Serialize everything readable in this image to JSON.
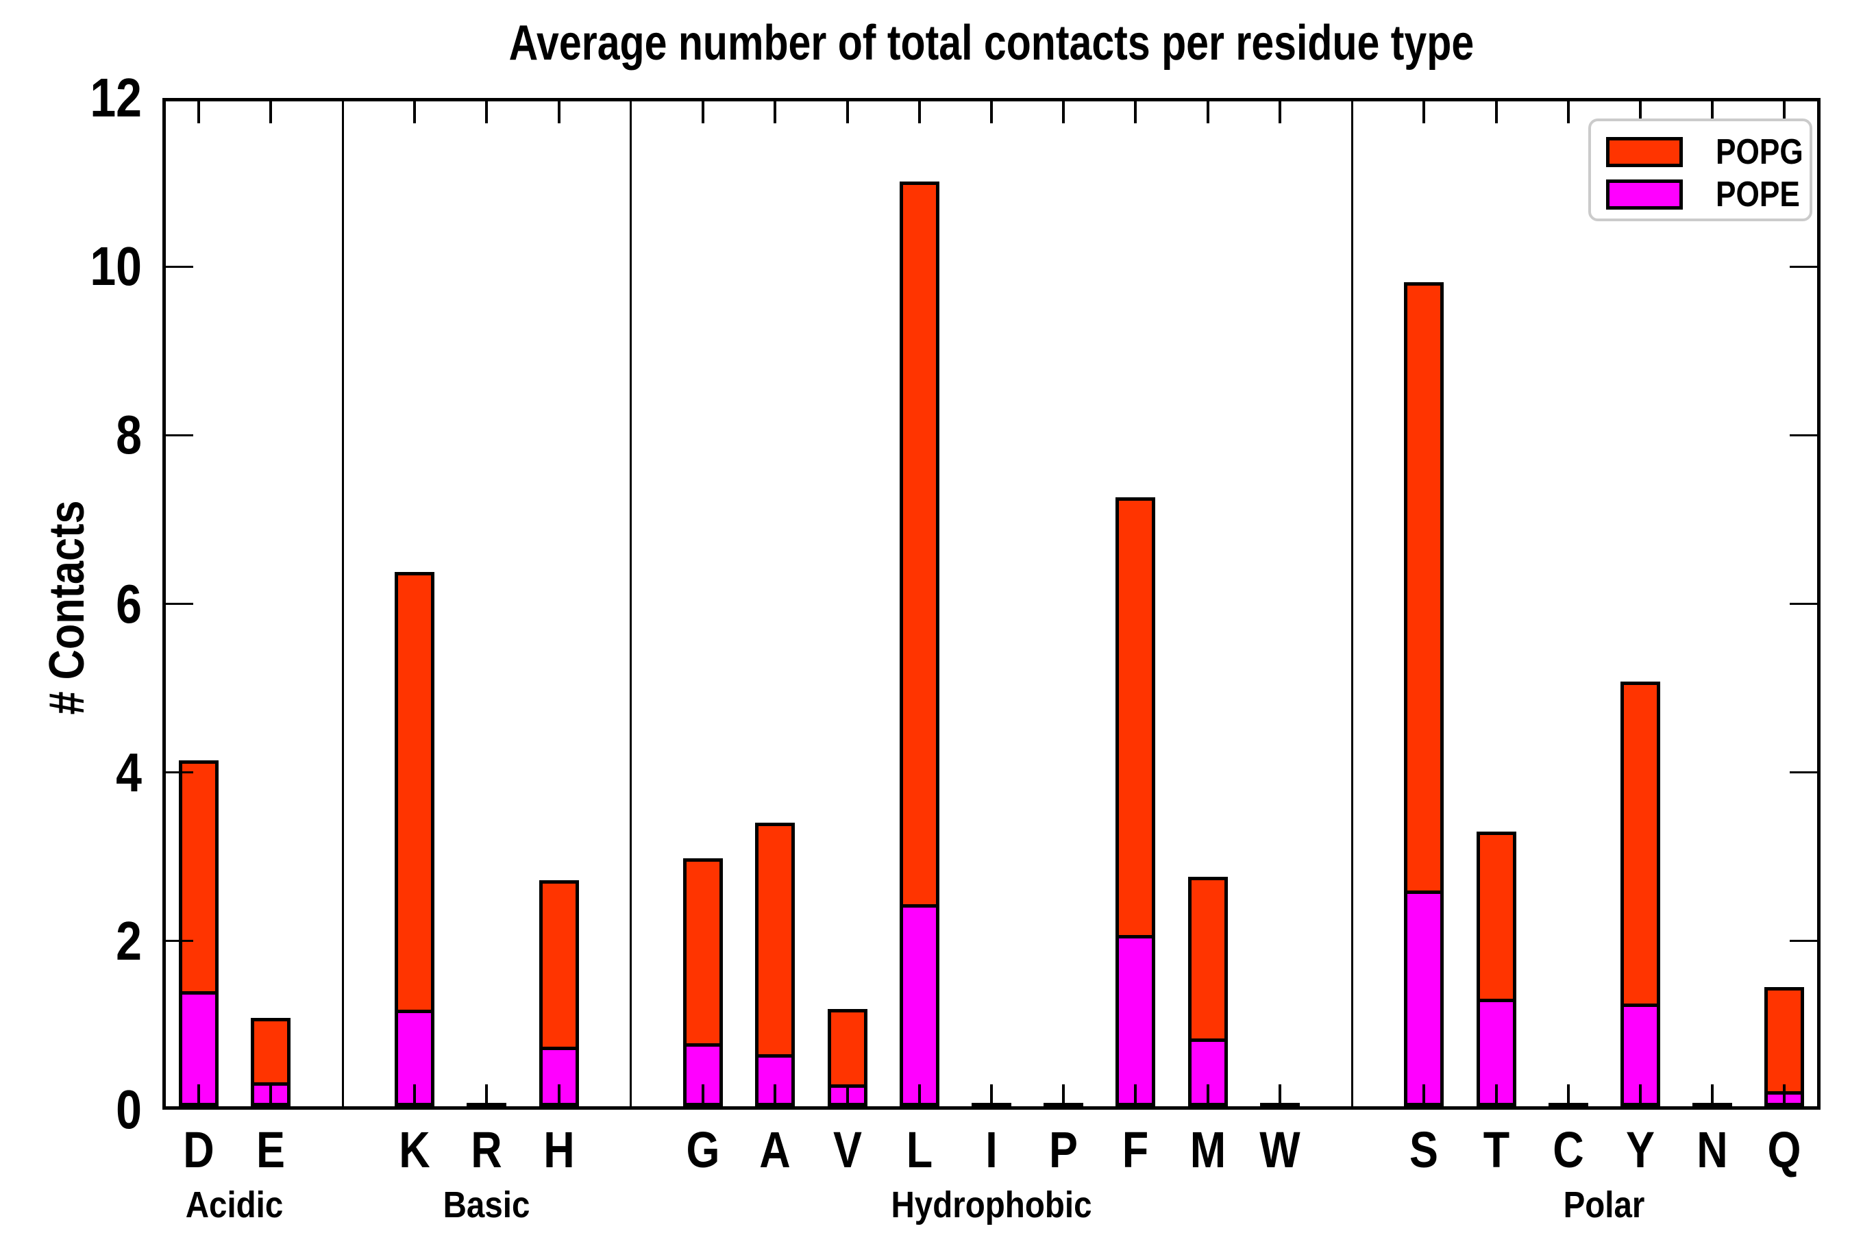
{
  "title": "Average number of total contacts per residue type",
  "ylabel": "# Contacts",
  "legend": {
    "items": [
      {
        "label": "POPG",
        "color": "#ff3400"
      },
      {
        "label": "POPE",
        "color": "#ff00ff"
      }
    ]
  },
  "chart_data": {
    "type": "bar",
    "stacked": true,
    "title": "Average number of total contacts per residue type",
    "xlabel": "",
    "ylabel": "# Contacts",
    "ylim": [
      0,
      12
    ],
    "yticks": [
      0,
      2,
      4,
      6,
      8,
      10,
      12
    ],
    "grid": false,
    "legend_position": "upper right",
    "categories": [
      "D",
      "E",
      "K",
      "R",
      "H",
      "G",
      "A",
      "V",
      "L",
      "I",
      "P",
      "F",
      "M",
      "W",
      "S",
      "T",
      "C",
      "Y",
      "N",
      "Q"
    ],
    "slot_indices": [
      0,
      1,
      3,
      4,
      5,
      7,
      8,
      9,
      10,
      11,
      12,
      13,
      14,
      15,
      17,
      18,
      19,
      20,
      21,
      22
    ],
    "slot_count": 23,
    "divider_slots": [
      2,
      6,
      16
    ],
    "groups": [
      {
        "label": "Acidic",
        "residues": [
          "D",
          "E"
        ],
        "label_slot": 0.5
      },
      {
        "label": "Basic",
        "residues": [
          "K",
          "R",
          "H"
        ],
        "label_slot": 4
      },
      {
        "label": "Hydrophobic",
        "residues": [
          "G",
          "A",
          "V",
          "L",
          "I",
          "P",
          "F",
          "M",
          "W"
        ],
        "label_slot": 11
      },
      {
        "label": "Polar",
        "residues": [
          "S",
          "T",
          "C",
          "Y",
          "N",
          "Q"
        ],
        "label_slot": 19.5
      }
    ],
    "series": [
      {
        "name": "POPE",
        "color": "#ff00ff",
        "values": [
          1.35,
          0.26,
          1.12,
          0.01,
          0.69,
          0.73,
          0.59,
          0.24,
          2.37,
          0.01,
          0.01,
          2.01,
          0.79,
          0.01,
          2.54,
          1.27,
          0.01,
          1.2,
          0.01,
          0.15
        ]
      },
      {
        "name": "POPG",
        "color": "#ff3400",
        "values": [
          2.75,
          0.79,
          5.22,
          0.01,
          1.99,
          2.21,
          2.77,
          0.91,
          8.6,
          0.01,
          0.01,
          5.21,
          1.93,
          0.01,
          7.23,
          1.99,
          0.01,
          3.84,
          0.01,
          1.26
        ]
      }
    ],
    "totals": [
      4.1,
      1.05,
      6.34,
      0.02,
      2.68,
      2.94,
      3.36,
      1.15,
      10.97,
      0.02,
      0.02,
      7.22,
      2.72,
      0.02,
      9.77,
      3.26,
      0.02,
      5.04,
      0.02,
      1.41
    ]
  }
}
